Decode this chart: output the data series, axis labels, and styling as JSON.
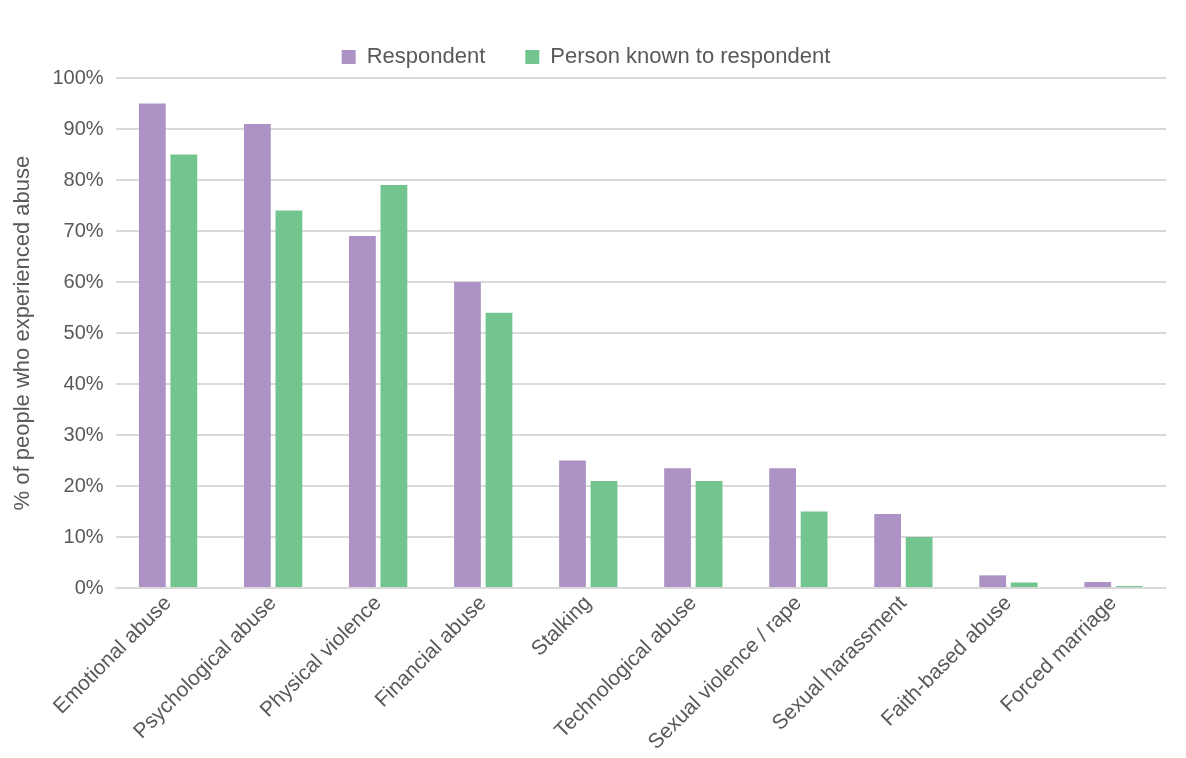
{
  "chart_data": {
    "type": "bar",
    "ylabel": "% of people who experienced abuse",
    "categories": [
      "Emotional abuse",
      "Psychological abuse",
      "Physical violence",
      "Financial abuse",
      "Stalking",
      "Technological abuse",
      "Sexual violence / rape",
      "Sexual harassment",
      "Faith-based abuse",
      "Forced marriage"
    ],
    "series": [
      {
        "name": "Respondent",
        "color": "#ad93c5",
        "values": [
          95,
          91,
          69,
          60,
          25,
          23.5,
          23.5,
          14.5,
          2.5,
          1.2
        ]
      },
      {
        "name": "Person known to respondent",
        "color": "#72c58e",
        "values": [
          85,
          74,
          79,
          54,
          21,
          21,
          15,
          10,
          1.1,
          0.4
        ]
      }
    ],
    "ylim": [
      0,
      100
    ],
    "yticks": [
      {
        "value": 0,
        "label": "0%"
      },
      {
        "value": 10,
        "label": "10%"
      },
      {
        "value": 20,
        "label": "20%"
      },
      {
        "value": 30,
        "label": "30%"
      },
      {
        "value": 40,
        "label": "40%"
      },
      {
        "value": 50,
        "label": "50%"
      },
      {
        "value": 60,
        "label": "60%"
      },
      {
        "value": 70,
        "label": "70%"
      },
      {
        "value": 80,
        "label": "80%"
      },
      {
        "value": 90,
        "label": "90%"
      },
      {
        "value": 100,
        "label": "100%"
      }
    ],
    "grid": "y",
    "legend": "top"
  }
}
